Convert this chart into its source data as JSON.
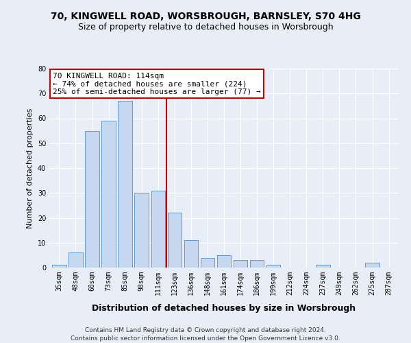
{
  "title1": "70, KINGWELL ROAD, WORSBROUGH, BARNSLEY, S70 4HG",
  "title2": "Size of property relative to detached houses in Worsbrough",
  "xlabel": "Distribution of detached houses by size in Worsbrough",
  "ylabel": "Number of detached properties",
  "categories": [
    "35sqm",
    "48sqm",
    "60sqm",
    "73sqm",
    "85sqm",
    "98sqm",
    "111sqm",
    "123sqm",
    "136sqm",
    "148sqm",
    "161sqm",
    "174sqm",
    "186sqm",
    "199sqm",
    "212sqm",
    "224sqm",
    "237sqm",
    "249sqm",
    "262sqm",
    "275sqm",
    "287sqm"
  ],
  "values": [
    1,
    6,
    55,
    59,
    67,
    30,
    31,
    22,
    11,
    4,
    5,
    3,
    3,
    1,
    0,
    0,
    1,
    0,
    0,
    2,
    0
  ],
  "bar_color": "#c5d8f0",
  "bar_edge_color": "#5b9bd5",
  "vline_x": 6.5,
  "vline_color": "#cc0000",
  "annotation_line1": "70 KINGWELL ROAD: 114sqm",
  "annotation_line2": "← 74% of detached houses are smaller (224)",
  "annotation_line3": "25% of semi-detached houses are larger (77) →",
  "annotation_box_color": "#ffffff",
  "annotation_box_edge": "#cc0000",
  "ylim": [
    0,
    80
  ],
  "yticks": [
    0,
    10,
    20,
    30,
    40,
    50,
    60,
    70,
    80
  ],
  "footer1": "Contains HM Land Registry data © Crown copyright and database right 2024.",
  "footer2": "Contains public sector information licensed under the Open Government Licence v3.0.",
  "bg_color": "#e8eef8",
  "grid_color": "#ffffff",
  "title1_fontsize": 10,
  "title2_fontsize": 9,
  "xlabel_fontsize": 9,
  "ylabel_fontsize": 8,
  "tick_fontsize": 7,
  "annotation_fontsize": 8,
  "footer_fontsize": 6.5
}
